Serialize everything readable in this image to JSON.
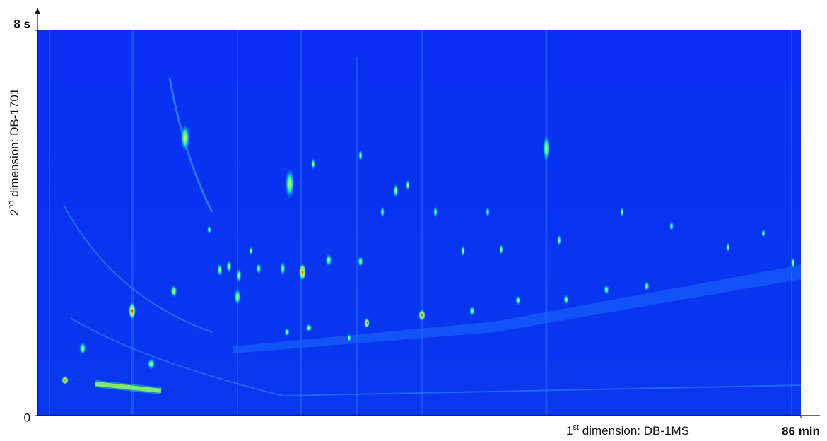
{
  "chart_data": {
    "type": "heatmap",
    "x_label": {
      "base": "1",
      "sup": "st",
      "rest": " dimension: DB-1MS"
    },
    "y_label": {
      "base": "2",
      "sup": "nd",
      "rest": " dimension: DB-1701"
    },
    "xlim": [
      0,
      86
    ],
    "xticks": [
      {
        "value": 86,
        "label": "86 min"
      }
    ],
    "ylim": [
      0,
      8
    ],
    "yticks": [
      0,
      {
        "value": 8,
        "label": "8 s"
      }
    ]
  }
}
